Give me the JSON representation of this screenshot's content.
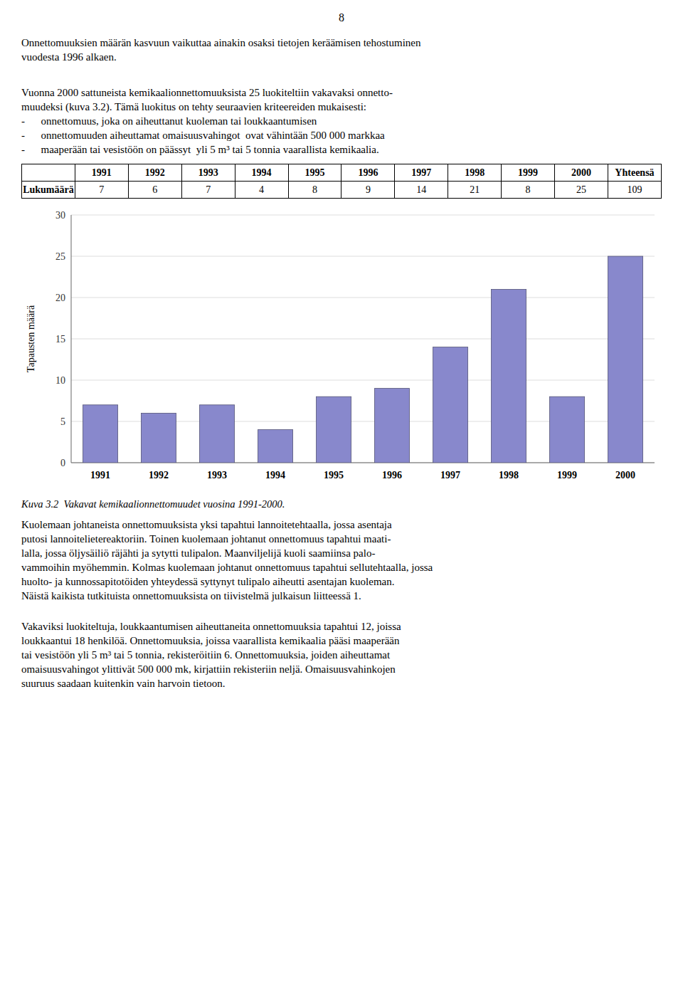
{
  "page_number": "8",
  "paragraphs": [
    [
      "Onnettomuuksien määrän kasvuun vaikuttaa ainakin osaksi tietojen keräämisen tehostuminen",
      "vuodesta 1996 alkaen."
    ],
    [
      "Vuonna 2000 sattuneista kemikaalionnettomuuksista 25 luokiteltiin vakavaksi onnetto-",
      "muudeksi (kuva 3.2). Tämä luokitus on tehty seuraavien kriteereiden mukaisesti:",
      "-      onnettomuus, joka on aiheuttanut kuoleman tai loukkaantumisen",
      "-      onnettomuuden aiheuttamat omaisuusvahingot  ovat vähintään 500 000 markkaa",
      "-      maaperään tai vesistöön on päässyt  yli 5 m³ tai 5 tonnia vaarallista kemikaalia."
    ],
    [
      "Kuolemaan johtaneista onnettomuuksista yksi tapahtui lannoitetehtaalla, jossa asentaja",
      "putosi lannoitelietereaktoriin. Toinen kuolemaan johtanut onnettomuus tapahtui maati-",
      "lalla, jossa öljysäiliö räjähti ja sytytti tulipalon. Maanviljelijä kuoli saamiinsa palo-",
      "vammoihin myöhemmin. Kolmas kuolemaan johtanut onnettomuus tapahtui sellutehtaalla, jossa",
      "huolto- ja kunnossapitotöiden yhteydessä syttynyt tulipalo aiheutti asentajan kuoleman.",
      "Näistä kaikista tutkituista onnettomuuksista on tiivistelmä julkaisun liitteessä 1."
    ],
    [
      "Vakaviksi luokiteltuja, loukkaantumisen aiheuttaneita onnettomuuksia tapahtui 12, joissa",
      "loukkaantui 18 henkilöä. Onnettomuuksia, joissa vaarallista kemikaalia pääsi maaperään",
      "tai vesistöön yli 5 m³ tai 5 tonnia, rekisteröitiin 6. Onnettomuuksia, joiden aiheuttamat",
      "omaisuusvahingot ylittivät 500 000 mk, kirjattiin rekisteriin neljä. Omaisuusvahinkojen",
      "suuruus saadaan kuitenkin vain harvoin tietoon."
    ]
  ],
  "table": {
    "row_label": "Lukumäärä",
    "headers": [
      "1991",
      "1992",
      "1993",
      "1994",
      "1995",
      "1996",
      "1997",
      "1998",
      "1999",
      "2000",
      "Yhteensä"
    ],
    "values": [
      7,
      6,
      7,
      4,
      8,
      9,
      14,
      21,
      8,
      25,
      109
    ]
  },
  "chart_data": {
    "type": "bar",
    "categories": [
      "1991",
      "1992",
      "1993",
      "1994",
      "1995",
      "1996",
      "1997",
      "1998",
      "1999",
      "2000"
    ],
    "values": [
      7,
      6,
      7,
      4,
      8,
      9,
      14,
      21,
      8,
      25
    ],
    "color": "#8888CC",
    "ylabel": "Tapausten määrä",
    "ylim": [
      0,
      30
    ],
    "yticks": [
      0,
      5,
      10,
      15,
      20,
      25,
      30
    ],
    "grid": true,
    "caption": "Kuva 3.2  Vakavat kemikaalionnettomuudet vuosina 1991-2000."
  }
}
